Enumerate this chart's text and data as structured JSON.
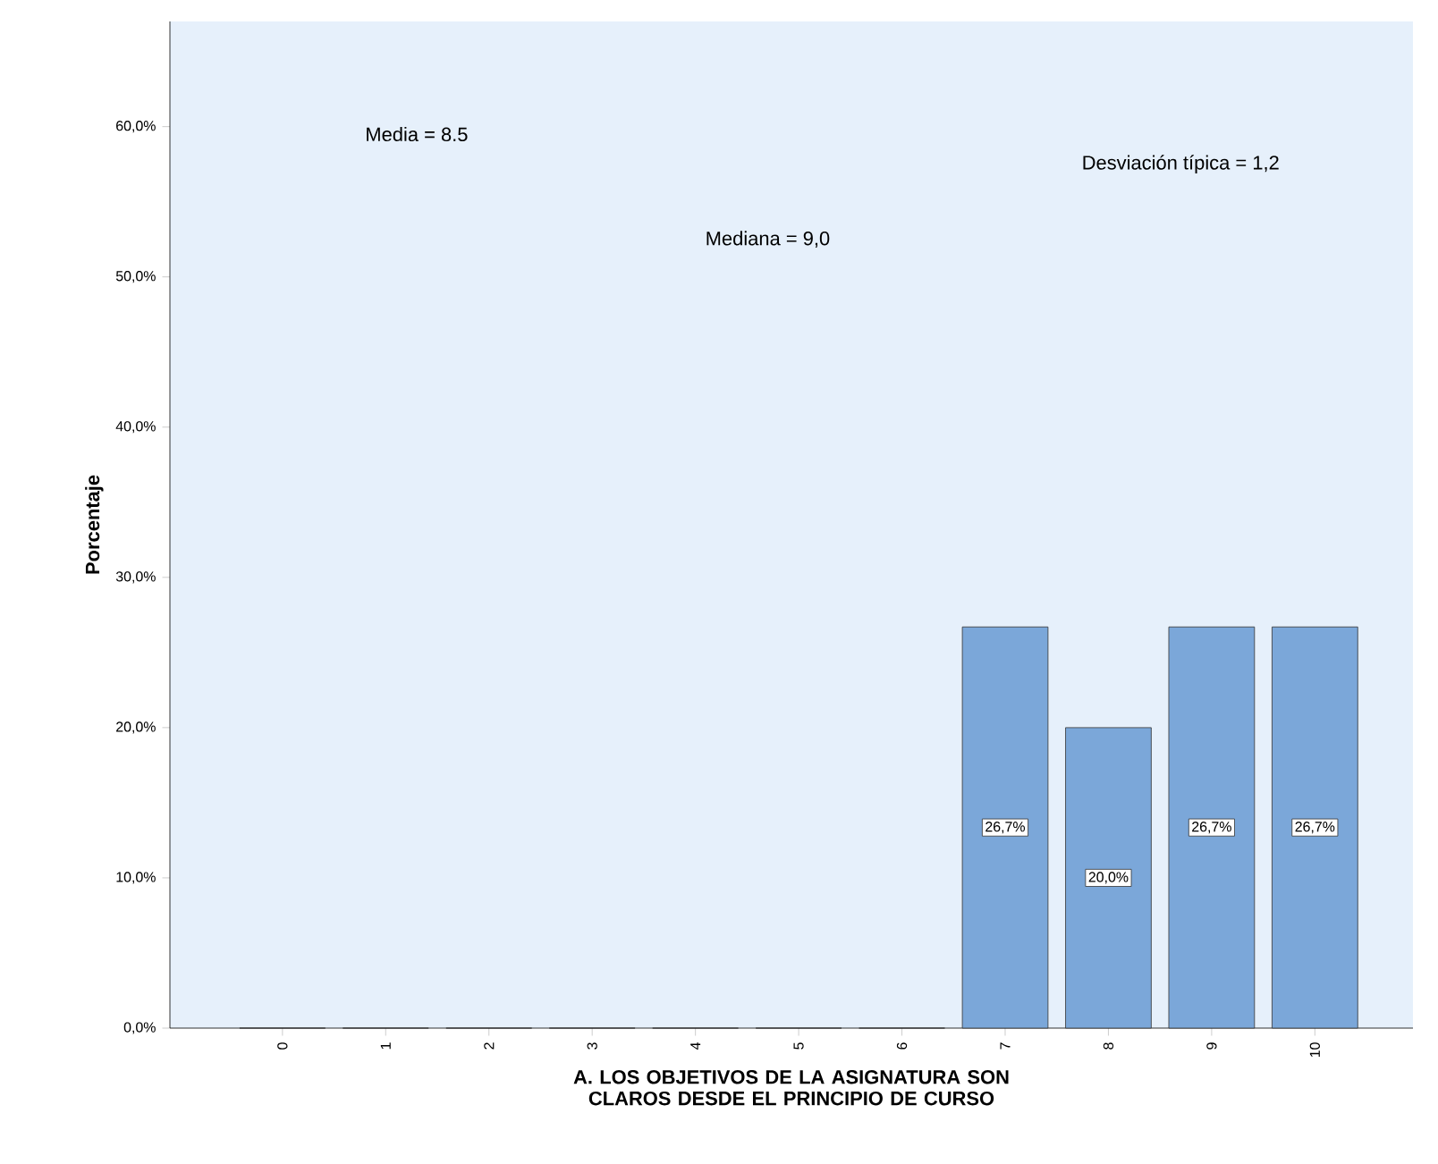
{
  "chart_data": {
    "type": "bar",
    "xlabel": "A. LOS OBJETIVOS DE LA ASIGNATURA SON CLAROS DESDE EL PRINCIPIO DE CURSO",
    "ylabel": "Porcentaje",
    "categories": [
      "0",
      "1",
      "2",
      "3",
      "4",
      "5",
      "6",
      "7",
      "8",
      "9",
      "10"
    ],
    "values": [
      0,
      0,
      0,
      0,
      0,
      0,
      0,
      26.7,
      20.0,
      26.7,
      26.7
    ],
    "value_labels": [
      null,
      null,
      null,
      null,
      null,
      null,
      null,
      "26,7%",
      "20,0%",
      "26,7%",
      "26,7%"
    ],
    "colors": [
      "#333333",
      "#333333",
      "#333333",
      "#333333",
      "#333333",
      "#333333",
      "#333333",
      "#7ba7d9",
      "#7ba7d9",
      "#7ba7d9",
      "#7ba7d9"
    ],
    "ylim": [
      0,
      67
    ],
    "yticks": [
      {
        "value": 0,
        "label": "0,0%"
      },
      {
        "value": 10,
        "label": "10,0%"
      },
      {
        "value": 20,
        "label": "20,0%"
      },
      {
        "value": 30,
        "label": "30,0%"
      },
      {
        "value": 40,
        "label": "40,0%"
      },
      {
        "value": 50,
        "label": "50,0%"
      },
      {
        "value": 60,
        "label": "60,0%"
      }
    ],
    "annotations": [
      "Media = 8.5",
      "Mediana = 9,0",
      "Desviación típica = 1,2"
    ]
  }
}
